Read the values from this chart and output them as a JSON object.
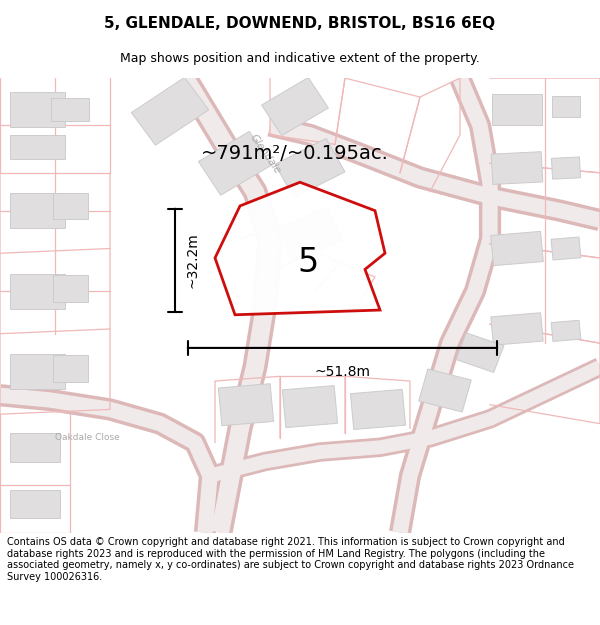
{
  "title": "5, GLENDALE, DOWNEND, BRISTOL, BS16 6EQ",
  "subtitle": "Map shows position and indicative extent of the property.",
  "footer": "Contains OS data © Crown copyright and database right 2021. This information is subject to Crown copyright and database rights 2023 and is reproduced with the permission of HM Land Registry. The polygons (including the associated geometry, namely x, y co-ordinates) are subject to Crown copyright and database rights 2023 Ordnance Survey 100026316.",
  "area_label": "~791m²/~0.195ac.",
  "property_number": "5",
  "dim_width": "~51.8m",
  "dim_height": "~32.2m",
  "street_label": "Glendale",
  "street_label2": "Oakdale Close",
  "map_bg": "#f7f4f4",
  "building_fill": "#e0dede",
  "building_stroke": "#cccccc",
  "parcel_color": "#f0b8b8",
  "road_outer": "#e8c0c0",
  "road_inner": "#f5f0f0",
  "property_stroke": "#cc0000",
  "title_fontsize": 11,
  "subtitle_fontsize": 9,
  "footer_fontsize": 7.0
}
